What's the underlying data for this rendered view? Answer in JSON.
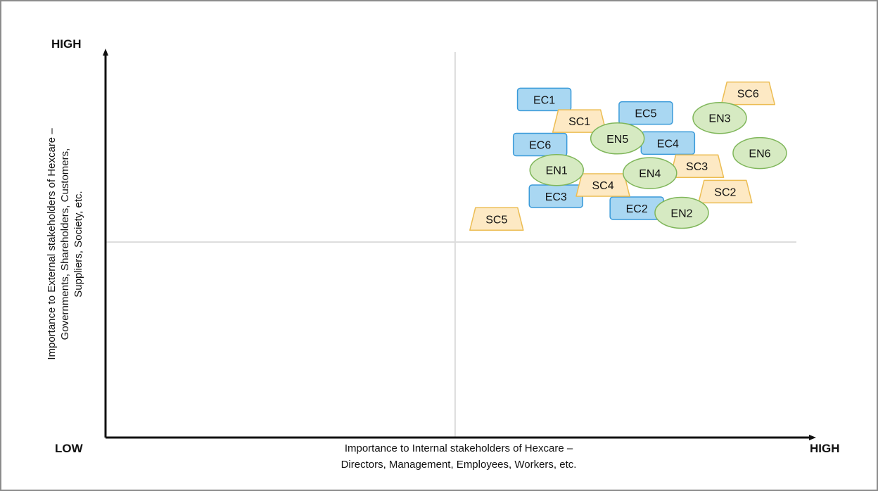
{
  "chart_data": {
    "type": "scatter",
    "title": "",
    "x_axis": {
      "title_lines": [
        "Importance to Internal stakeholders of Hexcare –",
        "Directors, Management, Employees, Workers, etc."
      ],
      "low_label": "LOW",
      "high_label": "HIGH",
      "range": [
        0,
        100
      ]
    },
    "y_axis": {
      "title_lines": [
        "Importance to External stakeholders of Hexcare –",
        "Governments, Shareholders, Customers,",
        "Suppliers, Society, etc."
      ],
      "high_label": "HIGH",
      "range": [
        0,
        100
      ]
    },
    "quadrant_dividers": {
      "x": 50.6,
      "y": 50.7
    },
    "categories": [
      {
        "prefix": "EC",
        "shape": "rectangle",
        "fill": "#a9d7f2",
        "stroke": "#3a9ad9"
      },
      {
        "prefix": "EN",
        "shape": "ellipse",
        "fill": "#d6eac2",
        "stroke": "#7fb65a"
      },
      {
        "prefix": "SC",
        "shape": "trapezoid",
        "fill": "#fde9c4",
        "stroke": "#ecbd53"
      }
    ],
    "points": [
      {
        "label": "EC1",
        "category": "EC",
        "x": 63.5,
        "y": 87.7
      },
      {
        "label": "EC5",
        "category": "EC",
        "x": 78.2,
        "y": 84.2
      },
      {
        "label": "EC6",
        "category": "EC",
        "x": 62.9,
        "y": 76.0
      },
      {
        "label": "EC4",
        "category": "EC",
        "x": 81.4,
        "y": 76.4
      },
      {
        "label": "EC3",
        "category": "EC",
        "x": 65.2,
        "y": 62.6
      },
      {
        "label": "EC2",
        "category": "EC",
        "x": 76.9,
        "y": 59.5
      },
      {
        "label": "SC1",
        "category": "SC",
        "x": 68.6,
        "y": 82.1
      },
      {
        "label": "SC6",
        "category": "SC",
        "x": 93.0,
        "y": 89.3
      },
      {
        "label": "SC3",
        "category": "SC",
        "x": 85.6,
        "y": 70.4
      },
      {
        "label": "SC4",
        "category": "SC",
        "x": 72.0,
        "y": 65.5
      },
      {
        "label": "SC2",
        "category": "SC",
        "x": 89.7,
        "y": 63.8
      },
      {
        "label": "SC5",
        "category": "SC",
        "x": 56.6,
        "y": 56.7
      },
      {
        "label": "EN5",
        "category": "EN",
        "x": 74.1,
        "y": 77.6
      },
      {
        "label": "EN3",
        "category": "EN",
        "x": 88.9,
        "y": 82.9
      },
      {
        "label": "EN6",
        "category": "EN",
        "x": 94.7,
        "y": 73.8
      },
      {
        "label": "EN1",
        "category": "EN",
        "x": 65.3,
        "y": 69.4
      },
      {
        "label": "EN4",
        "category": "EN",
        "x": 78.8,
        "y": 68.6
      },
      {
        "label": "EN2",
        "category": "EN",
        "x": 83.4,
        "y": 58.3
      }
    ],
    "grid": false,
    "legend": "none"
  }
}
